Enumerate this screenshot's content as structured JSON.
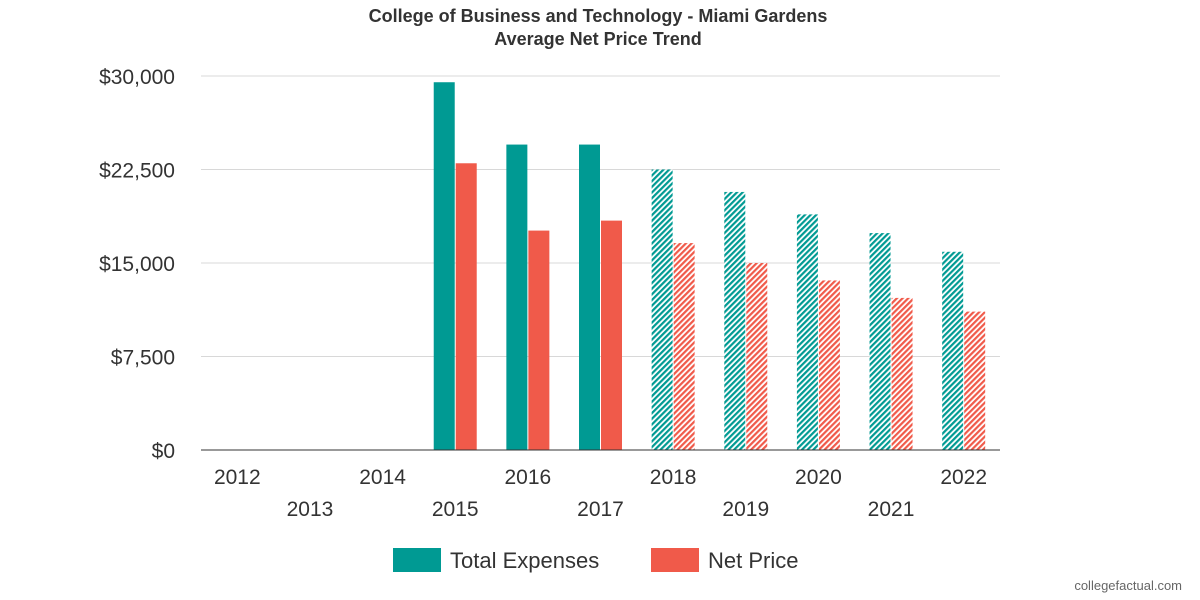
{
  "chart_data": {
    "type": "bar",
    "title": "College of Business and Technology - Miami Gardens",
    "subtitle": "Average Net Price Trend",
    "categories": [
      "2012",
      "2013",
      "2014",
      "2015",
      "2016",
      "2017",
      "2018",
      "2019",
      "2020",
      "2021",
      "2022"
    ],
    "series": [
      {
        "name": "Total Expenses",
        "color": "#009a93",
        "values": [
          null,
          null,
          null,
          29500,
          24500,
          24500,
          22500,
          20700,
          18900,
          17400,
          15900
        ],
        "projected": [
          false,
          false,
          false,
          false,
          false,
          false,
          true,
          true,
          true,
          true,
          true
        ]
      },
      {
        "name": "Net Price",
        "color": "#f05a4a",
        "values": [
          null,
          null,
          null,
          23000,
          17600,
          18400,
          16600,
          15000,
          13600,
          12200,
          11100
        ],
        "projected": [
          false,
          false,
          false,
          false,
          false,
          false,
          true,
          true,
          true,
          true,
          true
        ]
      }
    ],
    "yticks": [
      "$0",
      "$7,500",
      "$15,000",
      "$22,500",
      "$30,000"
    ],
    "ylim": [
      0,
      30000
    ],
    "grid": true,
    "legend_position": "bottom"
  },
  "credit": "collegefactual.com"
}
